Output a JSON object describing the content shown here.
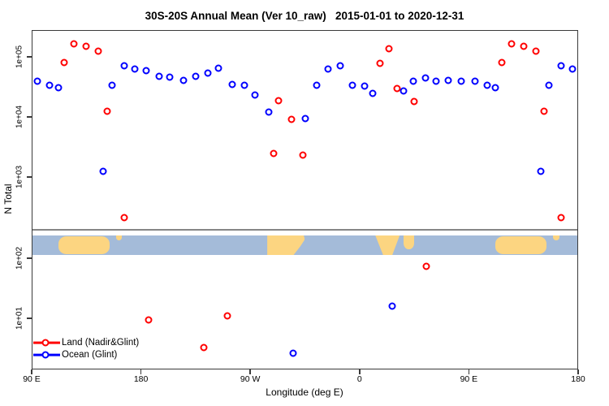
{
  "title": "30S-20S Annual Mean (Ver 10_raw)   2015-01-01 to 2020-12-31",
  "legend": {
    "items": [
      {
        "label": "Land (Nadir&Glint)",
        "color": "#ff0000"
      },
      {
        "label": "Ocean (Glint)",
        "color": "#0000ff"
      }
    ]
  },
  "colors": {
    "land_series": "#ff0000",
    "ocean_series": "#0000ff",
    "strip_ocean": "#a4bbd9",
    "strip_land": "#fcd581",
    "divider_line": "#868686",
    "axis": "#3a3a3a"
  },
  "chart_data": {
    "type": "scatter",
    "title": "30S-20S Annual Mean (Ver 10_raw)   2015-01-01 to 2020-12-31",
    "xlabel": "Longitude (deg E)",
    "ylabel": "N Total",
    "x_axis": {
      "range_deg_e": [
        90,
        540
      ],
      "wraps_globe": true,
      "ticks": [
        {
          "lon": 90,
          "label": "90 E"
        },
        {
          "lon": 180,
          "label": "180"
        },
        {
          "lon": 270,
          "label": "90 W"
        },
        {
          "lon": 360,
          "label": "0"
        },
        {
          "lon": 450,
          "label": "90 E"
        },
        {
          "lon": 540,
          "label": "180"
        }
      ]
    },
    "y_axis": {
      "scale": "log",
      "range": [
        2,
        250000
      ],
      "ticks": [
        {
          "value": 100000,
          "label": "1e+05"
        },
        {
          "value": 10000,
          "label": "1e+04"
        },
        {
          "value": 1000,
          "label": "1e+03"
        },
        {
          "value": 100,
          "label": "1e+02"
        },
        {
          "value": 10,
          "label": "1e+01"
        }
      ],
      "break_band": "map strip inserted between ~2.5e+02 and ~1.1e+02"
    },
    "series": [
      {
        "name": "Land (Nadir&Glint)",
        "color": "#ff0000",
        "points": [
          [
            117,
            80000
          ],
          [
            125,
            165000
          ],
          [
            135,
            150000
          ],
          [
            145,
            123000
          ],
          [
            152,
            12400
          ],
          [
            166,
            210
          ],
          [
            186,
            9.4
          ],
          [
            232,
            3.3
          ],
          [
            251,
            11
          ],
          [
            289,
            2500
          ],
          [
            293,
            18500
          ],
          [
            304,
            9000
          ],
          [
            313,
            2300
          ],
          [
            377,
            78000
          ],
          [
            384,
            137000
          ],
          [
            391,
            29500
          ],
          [
            405,
            18000
          ],
          [
            415,
            73
          ],
          [
            477,
            80000
          ],
          [
            485,
            165000
          ],
          [
            495,
            150000
          ],
          [
            505,
            123000
          ],
          [
            512,
            12400
          ],
          [
            526,
            210
          ]
        ]
      },
      {
        "name": "Ocean (Glint)",
        "color": "#0000ff",
        "points": [
          [
            95,
            39000
          ],
          [
            105,
            34000
          ],
          [
            112,
            31000
          ],
          [
            149,
            1250
          ],
          [
            156,
            34000
          ],
          [
            166,
            71000
          ],
          [
            175,
            63000
          ],
          [
            184,
            59000
          ],
          [
            195,
            47000
          ],
          [
            204,
            46000
          ],
          [
            215,
            41000
          ],
          [
            225,
            47000
          ],
          [
            235,
            54000
          ],
          [
            244,
            65000
          ],
          [
            255,
            35000
          ],
          [
            265,
            34000
          ],
          [
            274,
            23000
          ],
          [
            285,
            12000
          ],
          [
            305,
            2.6
          ],
          [
            315,
            9400
          ],
          [
            325,
            34000
          ],
          [
            334,
            63000
          ],
          [
            344,
            71000
          ],
          [
            354,
            34000
          ],
          [
            364,
            33000
          ],
          [
            371,
            25000
          ],
          [
            387,
            16
          ],
          [
            396,
            27000
          ],
          [
            404,
            39000
          ],
          [
            414,
            45000
          ],
          [
            423,
            39000
          ],
          [
            433,
            41000
          ],
          [
            444,
            39000
          ],
          [
            455,
            39000
          ],
          [
            465,
            34000
          ],
          [
            472,
            31000
          ],
          [
            509,
            1250
          ],
          [
            516,
            34000
          ],
          [
            526,
            71000
          ],
          [
            535,
            63000
          ]
        ]
      }
    ],
    "map_strip": {
      "ocean_color": "#a4bbd9",
      "land_color": "#fcd581",
      "patches": [
        {
          "name": "australia",
          "from": 112,
          "to": 154,
          "shape": "blob"
        },
        {
          "name": "new-caledonia",
          "from": 159.5,
          "to": 164.5,
          "shape": "top-sliver"
        },
        {
          "name": "south-america",
          "from": 284,
          "to": 315,
          "shape": "taper-right"
        },
        {
          "name": "africa",
          "from": 373,
          "to": 393,
          "shape": "taper-down"
        },
        {
          "name": "madagascar",
          "from": 396,
          "to": 405,
          "shape": "island-tall"
        },
        {
          "name": "australia",
          "from": 472,
          "to": 514,
          "shape": "blob"
        },
        {
          "name": "new-caledonia",
          "from": 519.5,
          "to": 524.5,
          "shape": "top-sliver"
        }
      ]
    }
  }
}
